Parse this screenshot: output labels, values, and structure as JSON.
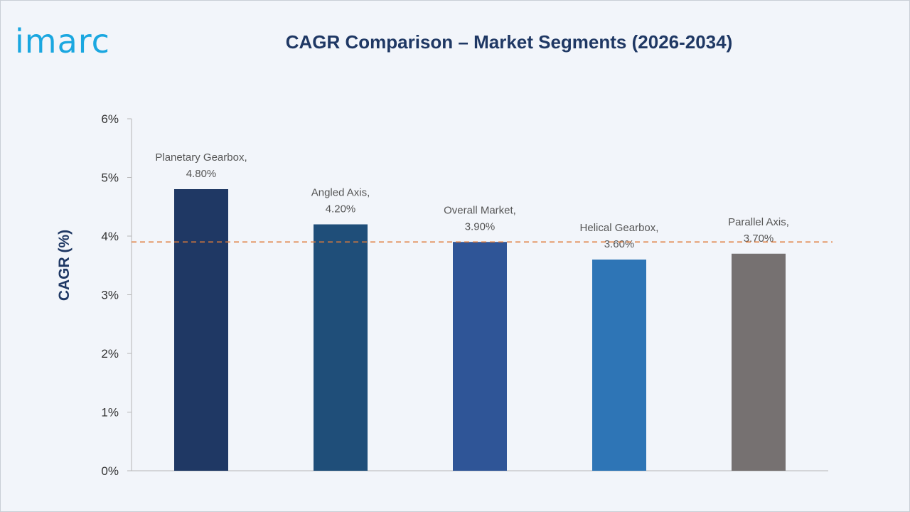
{
  "brand": {
    "logo_text": "imarc",
    "logo_color": "#1aa7e0"
  },
  "chart_data": {
    "type": "bar",
    "title": "CAGR Comparison – Market Segments (2026-2034)",
    "xlabel": "",
    "ylabel": "CAGR (%)",
    "ylim": [
      0,
      6
    ],
    "yticks": [
      0,
      1,
      2,
      3,
      4,
      5,
      6
    ],
    "ytick_labels": [
      "0%",
      "1%",
      "2%",
      "3%",
      "4%",
      "5%",
      "6%"
    ],
    "grid": false,
    "legend": "none",
    "reference_line": {
      "value": 3.9,
      "style": "dashed",
      "color": "#e07b39"
    },
    "bars": [
      {
        "category": "Planetary Gearbox",
        "value": 4.8,
        "label_name": "Planetary Gearbox,",
        "label_value": "4.80%",
        "color": "#1f3864"
      },
      {
        "category": "Angled Axis",
        "value": 4.2,
        "label_name": "Angled Axis,",
        "label_value": "4.20%",
        "color": "#1f4e79"
      },
      {
        "category": "Overall Market",
        "value": 3.9,
        "label_name": "Overall Market,",
        "label_value": "3.90%",
        "color": "#2f5597"
      },
      {
        "category": "Helical Gearbox",
        "value": 3.6,
        "label_name": "Helical Gearbox,",
        "label_value": "3.60%",
        "color": "#2e75b6"
      },
      {
        "category": "Parallel Axis",
        "value": 3.7,
        "label_name": "Parallel Axis,",
        "label_value": "3.70%",
        "color": "#767171"
      }
    ]
  }
}
